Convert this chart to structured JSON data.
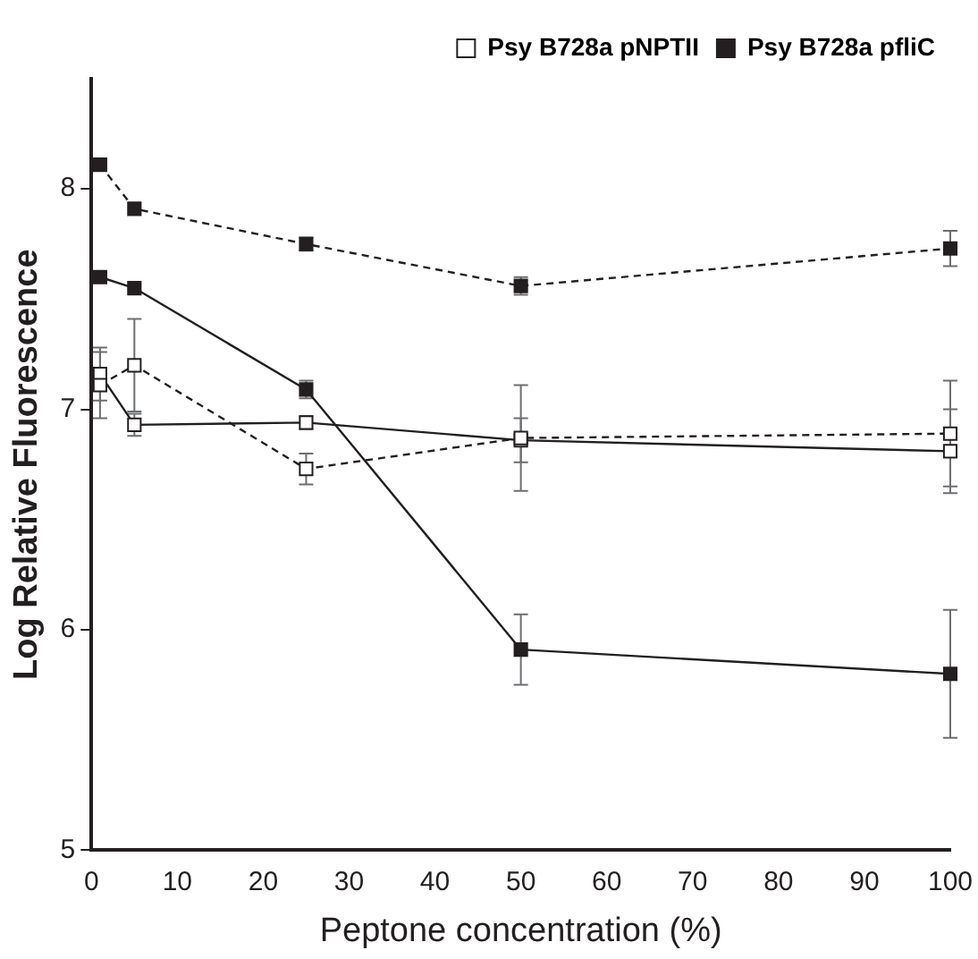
{
  "chart_data": {
    "type": "line",
    "xlabel": "Peptone concentration (%)",
    "ylabel": "Log Relative Fluorescence",
    "x": [
      1,
      5,
      25,
      50,
      100
    ],
    "xlim": [
      0,
      100
    ],
    "xticks": [
      0,
      10,
      20,
      30,
      40,
      50,
      60,
      70,
      80,
      90,
      100
    ],
    "ylim": [
      5,
      8.5
    ],
    "yticks": [
      5,
      6,
      7,
      8
    ],
    "marker": "square",
    "grid": false,
    "legend": "top right",
    "series": [
      {
        "name": "Psy B728a pNPTII",
        "color": "#ffffff",
        "line_style": "solid",
        "values": [
          7.16,
          6.93,
          6.94,
          6.86,
          6.81
        ],
        "errors": [
          0.12,
          0.05,
          0.03,
          0.1,
          0.19
        ]
      },
      {
        "color": "#ffffff",
        "line_style": "dashed",
        "values": [
          7.11,
          7.2,
          6.73,
          6.87,
          6.89
        ],
        "errors": [
          0.15,
          0.21,
          0.07,
          0.24,
          0.24
        ]
      },
      {
        "name": "Psy B728a pfliC",
        "color": "#231f20",
        "line_style": "solid",
        "values": [
          7.6,
          7.55,
          7.09,
          5.91,
          5.8
        ],
        "errors": [
          null,
          null,
          0.04,
          0.16,
          0.29
        ]
      },
      {
        "color": "#231f20",
        "line_style": "dashed",
        "values": [
          8.11,
          7.91,
          7.75,
          7.56,
          7.73
        ],
        "errors": [
          null,
          null,
          0.03,
          0.04,
          0.08
        ]
      }
    ]
  }
}
